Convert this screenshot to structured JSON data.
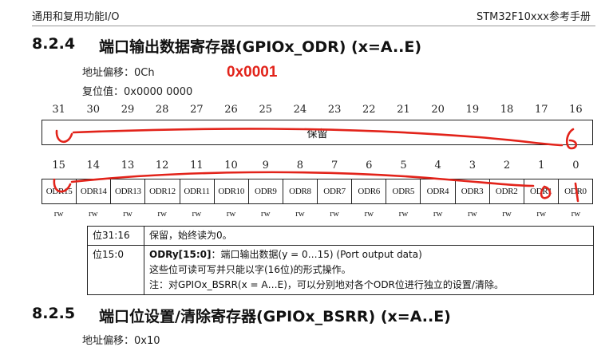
{
  "header": {
    "left": "通用和复用功能I/O",
    "right": "STM32F10xxx参考手册"
  },
  "section1": {
    "number": "8.2.4",
    "title": "端口输出数据寄存器(GPIOx_ODR) (x=A..E)",
    "offset_label": "地址偏移：0Ch",
    "reset_label": "复位值：0x0000 0000",
    "annotation": "0x0001"
  },
  "register": {
    "high_bits": [
      "31",
      "30",
      "29",
      "28",
      "27",
      "26",
      "25",
      "24",
      "23",
      "22",
      "21",
      "20",
      "19",
      "18",
      "17",
      "16"
    ],
    "reserved_label": "保留",
    "low_bits": [
      "15",
      "14",
      "13",
      "12",
      "11",
      "10",
      "9",
      "8",
      "7",
      "6",
      "5",
      "4",
      "3",
      "2",
      "1",
      "0"
    ],
    "fields": [
      "ODR15",
      "ODR14",
      "ODR13",
      "ODR12",
      "ODR11",
      "ODR10",
      "ODR9",
      "ODR8",
      "ODR7",
      "ODR6",
      "ODR5",
      "ODR4",
      "ODR3",
      "ODR2",
      "ODR1",
      "ODR0"
    ],
    "access": [
      "rw",
      "rw",
      "rw",
      "rw",
      "rw",
      "rw",
      "rw",
      "rw",
      "rw",
      "rw",
      "rw",
      "rw",
      "rw",
      "rw",
      "rw",
      "rw"
    ]
  },
  "description": {
    "row1": {
      "bits": "位31:16",
      "text": "保留，始终读为0。"
    },
    "row2": {
      "bits": "位15:0",
      "name": "ODRy[15:0]",
      "text1": "：端口输出数据(y = 0…15) (Port output data)",
      "text2": "这些位可读可写并只能以字(16位)的形式操作。",
      "text3": "注：对GPIOx_BSRR(x = A…E)，可以分别地对各个ODR位进行独立的设置/清除。"
    }
  },
  "section2": {
    "number": "8.2.5",
    "title": "端口位设置/清除寄存器(GPIOx_BSRR) (x=A..E)",
    "offset_label": "地址偏移：0x10"
  },
  "colors": {
    "ink": "#e2231a"
  }
}
